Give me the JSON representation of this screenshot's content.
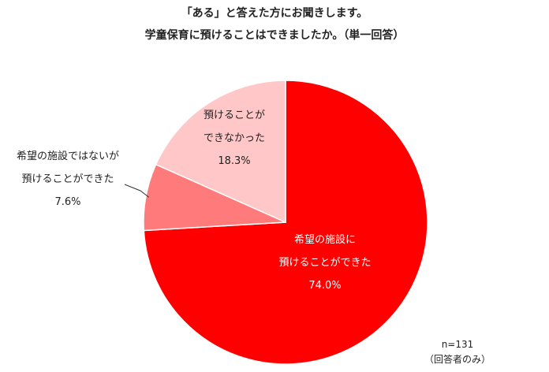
{
  "chart_data": {
    "type": "pie",
    "title": "「ある」と答えた方にお聞きします。",
    "subtitle": "学童保育に預けることはできましたか。（単一回答）",
    "slices": [
      {
        "label_lines": [
          "希望の施設に",
          "預けることができた"
        ],
        "value": 74.0,
        "value_label": "74.0%",
        "color": "#ff0000",
        "text_color": "#ffffff"
      },
      {
        "label_lines": [
          "希望の施設ではないが",
          "預けることができた"
        ],
        "value": 7.6,
        "value_label": "7.6%",
        "color": "#ff7a7a",
        "text_color": "#222222"
      },
      {
        "label_lines": [
          "預けることが",
          "できなかった"
        ],
        "value": 18.3,
        "value_label": "18.3%",
        "color": "#ffc7c7",
        "text_color": "#222222"
      }
    ],
    "start_angle_deg": 0,
    "direction": "clockwise"
  },
  "notes": {
    "sample_size": "n=131",
    "sample_note": "（回答者のみ）"
  }
}
